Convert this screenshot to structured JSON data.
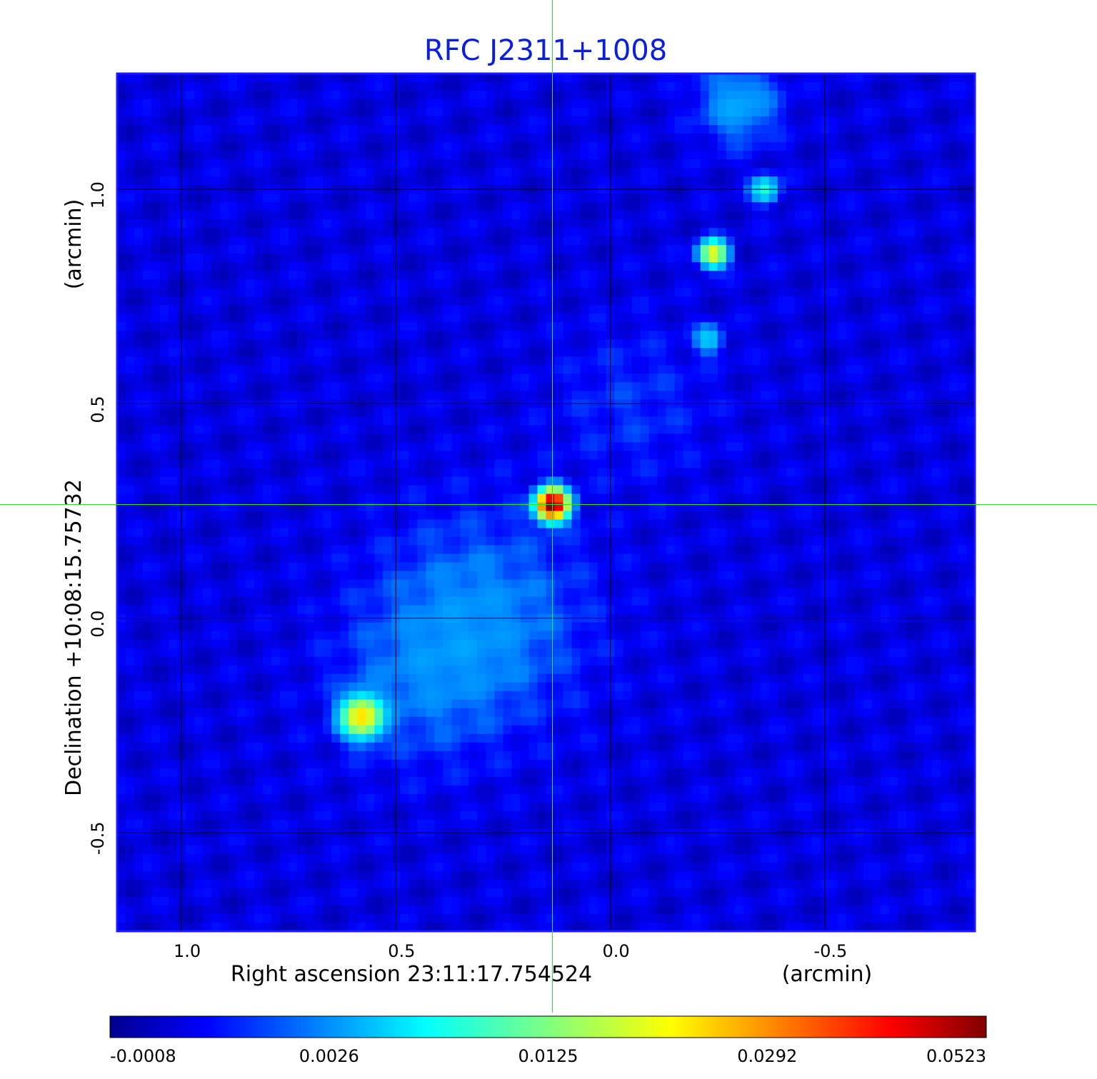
{
  "chart_data": {
    "type": "heatmap",
    "title": "RFC J2311+1008",
    "xlabel": "Right ascension  23:11:17.754524",
    "xunit": "(arcmin)",
    "ylabel": "Declination  +10:08:15.75732",
    "yunit": "(arcmin)",
    "xlim": [
      1.15,
      -0.85
    ],
    "ylim": [
      -0.73,
      1.27
    ],
    "x_ticks": [
      "1.0",
      "0.5",
      "0.0",
      "-0.5"
    ],
    "x_tick_values": [
      1.0,
      0.5,
      0.0,
      -0.5
    ],
    "y_ticks": [
      "1.0",
      "0.5",
      "0.0",
      "-0.5"
    ],
    "y_tick_values": [
      1.0,
      0.5,
      0.0,
      -0.5
    ],
    "grid": true,
    "crosshair": {
      "x": 0.135,
      "y": 0.265
    },
    "colormap": "jet",
    "colorbar_ticks": [
      "-0.0008",
      "0.0026",
      "0.0125",
      "0.0292",
      "0.0523"
    ],
    "background_level": 0.0005,
    "sources": [
      {
        "x": 0.135,
        "y": 0.265,
        "peak": 0.052,
        "sigma": 0.022
      },
      {
        "x": 0.58,
        "y": -0.23,
        "peak": 0.022,
        "sigma": 0.03
      },
      {
        "x": -0.24,
        "y": 0.85,
        "peak": 0.02,
        "sigma": 0.02
      },
      {
        "x": -0.36,
        "y": 1.0,
        "peak": 0.0085,
        "sigma": 0.02
      },
      {
        "x": -0.23,
        "y": 0.65,
        "peak": 0.0055,
        "sigma": 0.02
      },
      {
        "x": -0.3,
        "y": 1.2,
        "peak": 0.0035,
        "sigma": 0.06
      }
    ],
    "diffuse_emission": [
      {
        "x": 0.3,
        "y": 0.0,
        "peak": 0.0025,
        "sigma": 0.16
      },
      {
        "x": 0.45,
        "y": -0.15,
        "peak": 0.0015,
        "sigma": 0.13
      },
      {
        "x": -0.05,
        "y": 0.5,
        "peak": 0.001,
        "sigma": 0.12
      }
    ]
  }
}
